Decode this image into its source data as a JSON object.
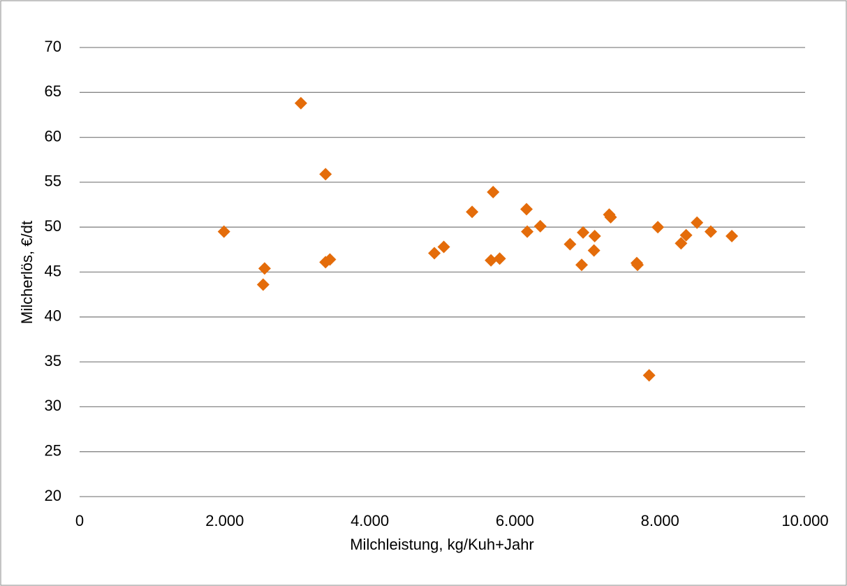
{
  "chart_data": {
    "type": "scatter",
    "x_label": "Milchleistung, kg/Kuh+Jahr",
    "y_label": "Milcherlös, €/dt",
    "color": "#e46c0a",
    "grid": true,
    "xlim": [
      0,
      10000
    ],
    "ylim": [
      20,
      70
    ],
    "xticks": [
      0,
      {
        "value": 2000,
        "label": "2.000"
      },
      {
        "value": 4000,
        "label": "4.000"
      },
      {
        "value": 6000,
        "label": "6.000"
      },
      {
        "value": 8000,
        "label": "8.000"
      },
      {
        "value": 10000,
        "label": "10.000"
      }
    ],
    "yticks": [
      20,
      25,
      30,
      35,
      40,
      45,
      50,
      55,
      60,
      65,
      70
    ],
    "x": [
      1990,
      2530,
      2550,
      3050,
      3390,
      3390,
      3450,
      4890,
      5020,
      5410,
      5700,
      5670,
      5790,
      6160,
      6170,
      6350,
      6760,
      6940,
      6920,
      7100,
      7090,
      7300,
      7320,
      7680,
      7690,
      7850,
      7970,
      8290,
      8360,
      8510,
      8700,
      8990
    ],
    "values": [
      49.5,
      43.6,
      45.4,
      63.8,
      55.9,
      46.1,
      46.4,
      47.1,
      47.8,
      51.7,
      53.9,
      46.3,
      46.5,
      52.0,
      49.5,
      50.1,
      48.1,
      49.4,
      45.8,
      49.0,
      47.4,
      51.4,
      51.1,
      46.0,
      45.8,
      33.5,
      50.0,
      48.2,
      49.1,
      50.5,
      49.5,
      49.0
    ]
  }
}
